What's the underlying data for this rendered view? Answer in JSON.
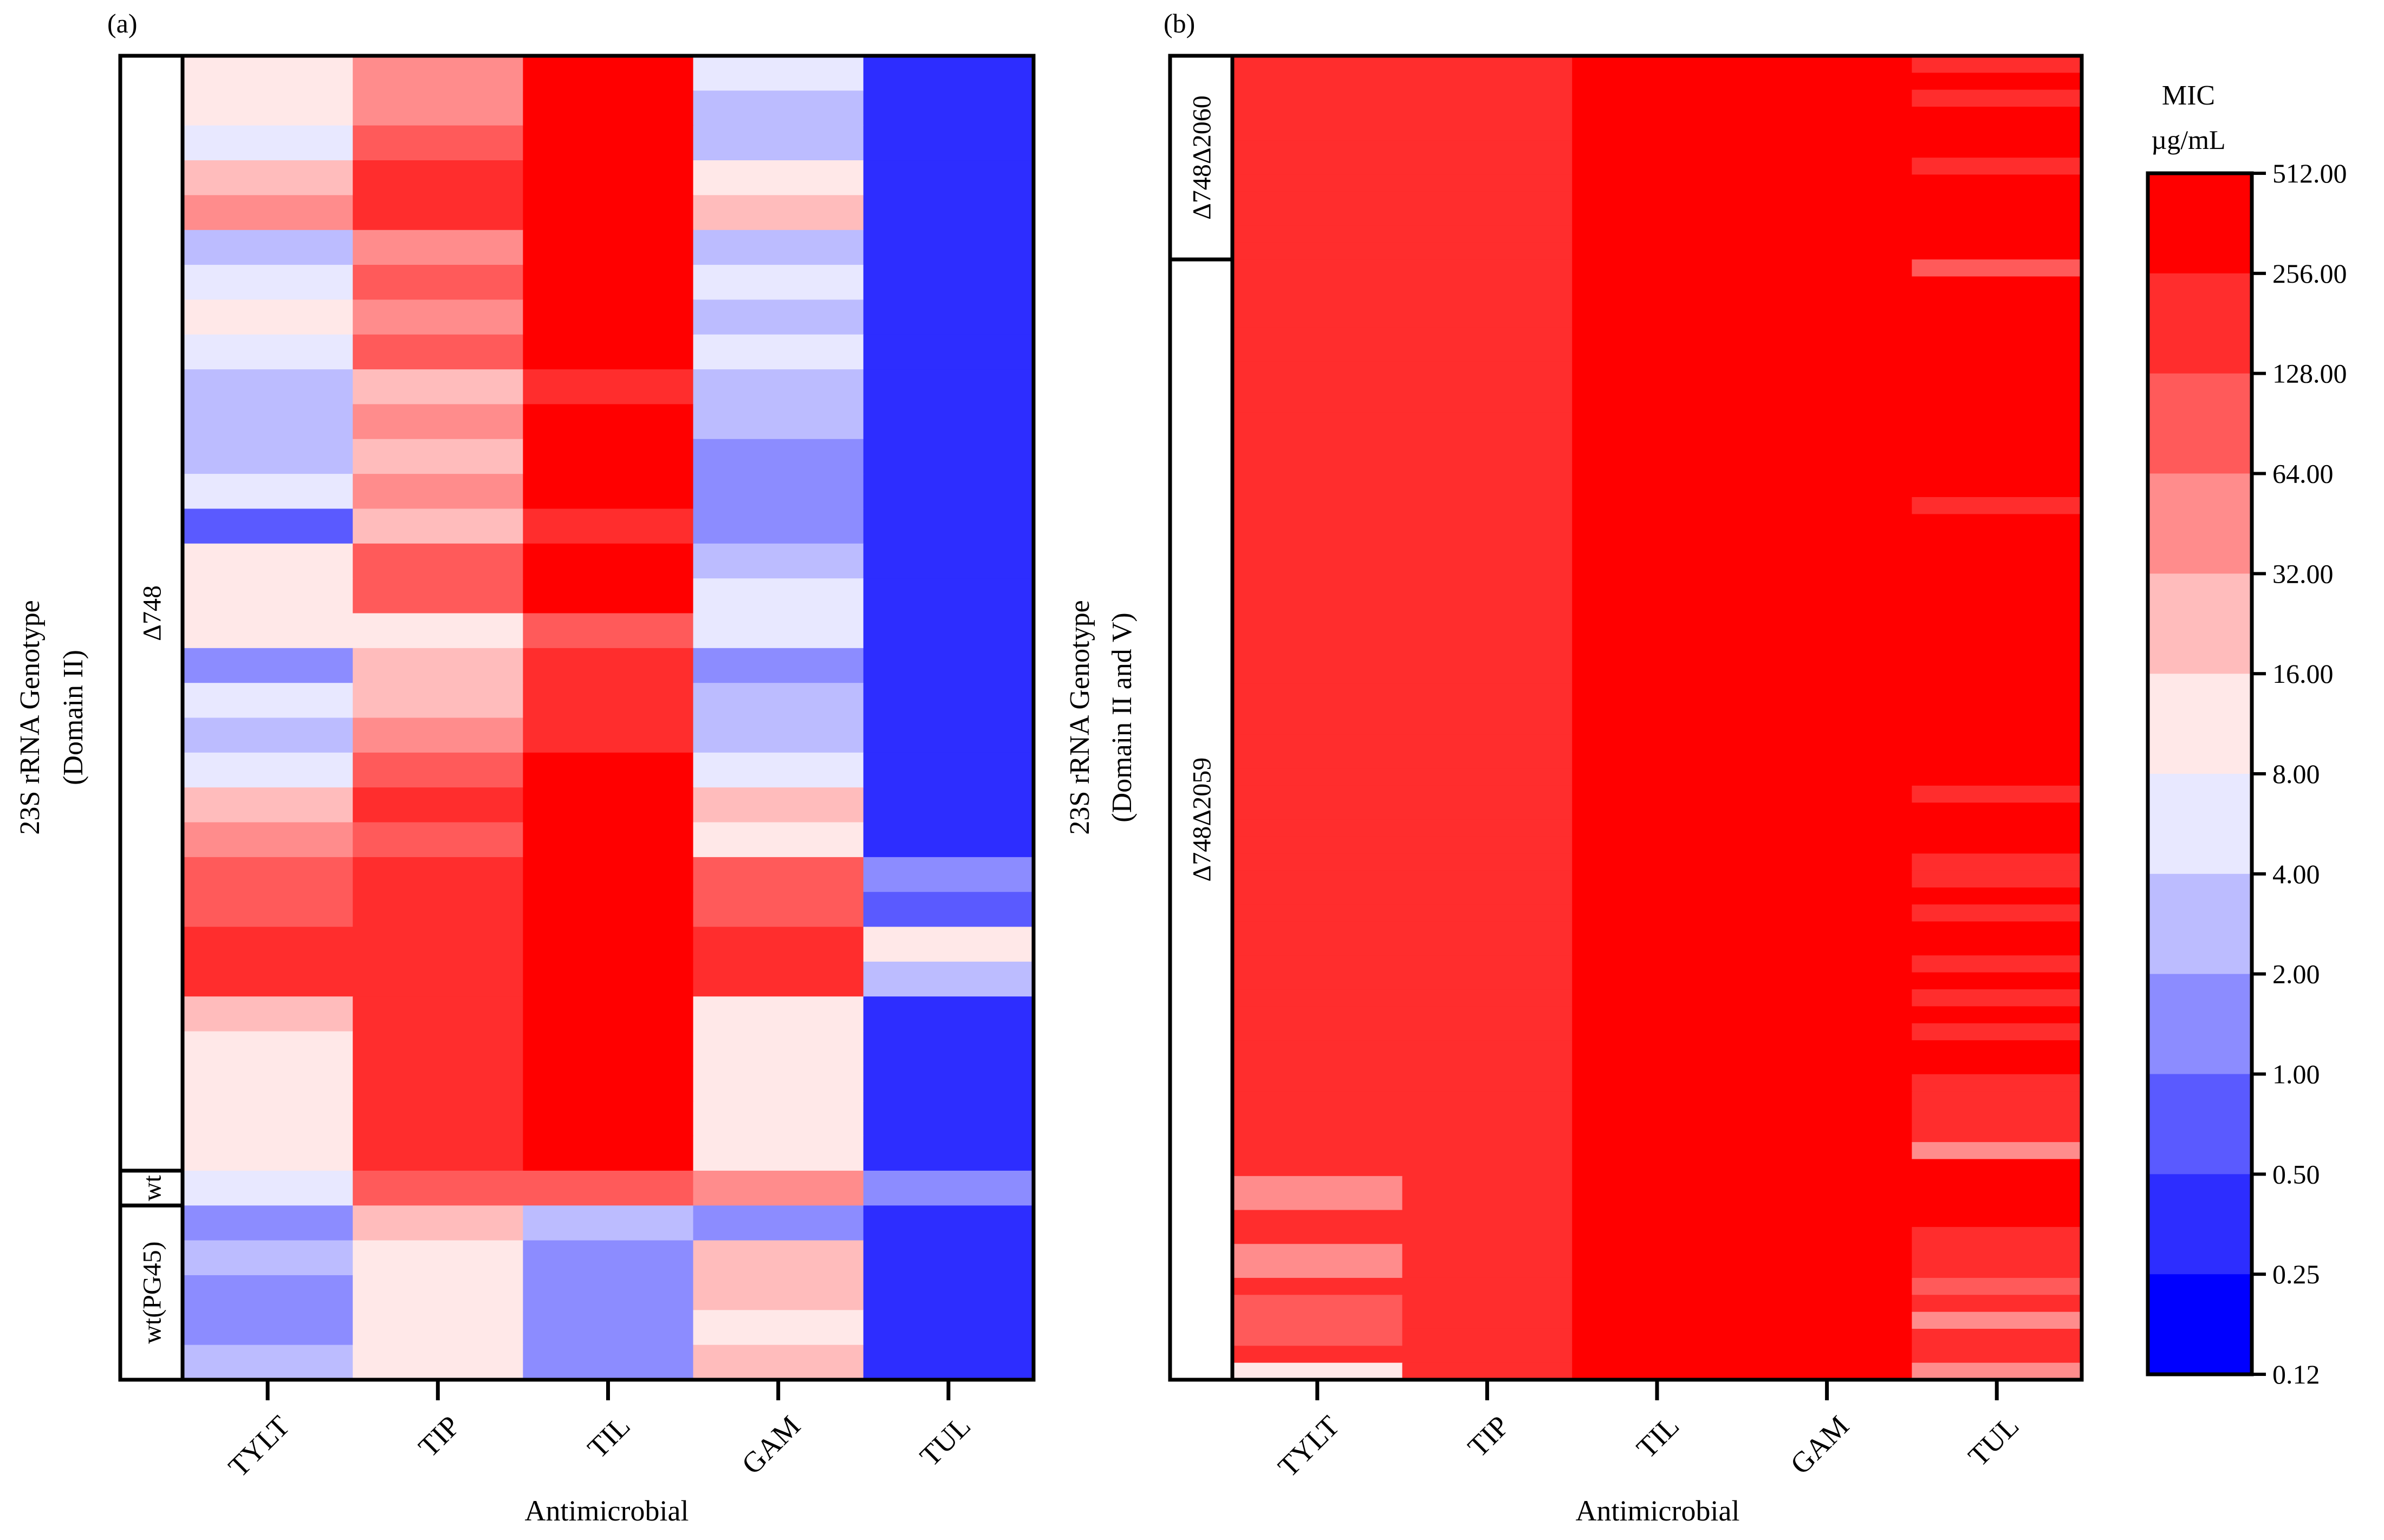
{
  "chart_data": {
    "type": "heatmap",
    "scale": {
      "title": "MIC",
      "unit": "µg/mL",
      "tick_labels": [
        "512.00",
        "256.00",
        "128.00",
        "64.00",
        "32.00",
        "16.00",
        "8.00",
        "4.00",
        "2.00",
        "1.00",
        "0.50",
        "0.25",
        "0.12"
      ],
      "band_colors": [
        "#ff0000",
        "#ff2d2d",
        "#ff5a5a",
        "#ff8c8c",
        "#ffbcbc",
        "#ffe8e8",
        "#e8e8ff",
        "#bcbcff",
        "#8c8cff",
        "#5a5aff",
        "#2d2dff",
        "#0000ff"
      ]
    },
    "panels": [
      {
        "label": "(a)",
        "xlabel": "Antimicrobial",
        "ylabel_line1": "23S rRNA Genotype",
        "ylabel_line2": "(Domain II)",
        "columns": [
          "TYLT",
          "TIP",
          "TIL",
          "GAM",
          "TUL"
        ],
        "groups": [
          {
            "name": "Δ748",
            "rows": 32
          },
          {
            "name": "wt",
            "rows": 1
          },
          {
            "name": "wt(PG45)",
            "rows": 5
          }
        ],
        "note": "values are µg/mL; rows top to bottom; columns TYLT, TIP, TIL, GAM, TUL",
        "rows": [
          [
            12,
            48,
            512,
            6,
            0.5
          ],
          [
            12,
            48,
            512,
            3,
            0.5
          ],
          [
            6,
            96,
            512,
            3,
            0.5
          ],
          [
            24,
            192,
            512,
            12,
            0.5
          ],
          [
            48,
            192,
            512,
            24,
            0.5
          ],
          [
            3,
            48,
            512,
            3,
            0.5
          ],
          [
            6,
            96,
            512,
            6,
            0.5
          ],
          [
            12,
            48,
            512,
            3,
            0.5
          ],
          [
            6,
            96,
            512,
            6,
            0.5
          ],
          [
            3,
            24,
            192,
            3,
            0.5
          ],
          [
            3,
            48,
            512,
            3,
            0.5
          ],
          [
            3,
            24,
            512,
            1.5,
            0.5
          ],
          [
            6,
            48,
            512,
            1.5,
            0.5
          ],
          [
            1,
            24,
            192,
            1.5,
            0.5
          ],
          [
            12,
            96,
            512,
            3,
            0.5
          ],
          [
            12,
            96,
            512,
            6,
            0.5
          ],
          [
            12,
            12,
            96,
            6,
            0.5
          ],
          [
            1.5,
            24,
            192,
            1.5,
            0.5
          ],
          [
            6,
            24,
            192,
            3,
            0.5
          ],
          [
            3,
            48,
            192,
            3,
            0.5
          ],
          [
            6,
            96,
            512,
            6,
            0.5
          ],
          [
            24,
            192,
            512,
            24,
            0.5
          ],
          [
            48,
            96,
            512,
            12,
            0.5
          ],
          [
            96,
            192,
            512,
            96,
            1.5
          ],
          [
            96,
            192,
            512,
            96,
            0.75
          ],
          [
            192,
            192,
            512,
            192,
            12
          ],
          [
            192,
            192,
            512,
            192,
            3
          ],
          [
            24,
            192,
            512,
            12,
            0.5
          ],
          [
            12,
            192,
            512,
            12,
            0.5
          ],
          [
            12,
            192,
            512,
            12,
            0.5
          ],
          [
            12,
            192,
            512,
            12,
            0.5
          ],
          [
            12,
            192,
            512,
            12,
            0.5
          ],
          [
            6,
            96,
            96,
            48,
            1.5
          ],
          [
            1.5,
            24,
            3,
            1.5,
            0.5
          ],
          [
            3,
            12,
            1.5,
            24,
            0.5
          ],
          [
            1.5,
            12,
            1.5,
            24,
            0.5
          ],
          [
            1.5,
            12,
            1.5,
            12,
            0.5
          ],
          [
            3,
            12,
            1.5,
            24,
            0.5
          ]
        ]
      },
      {
        "label": "(b)",
        "xlabel": "Antimicrobial",
        "ylabel_line1": "23S rRNA Genotype",
        "ylabel_line2": "(Domain II and V)",
        "columns": [
          "TYLT",
          "TIP",
          "TIL",
          "GAM",
          "TUL"
        ],
        "groups": [
          {
            "name": "Δ748Δ2060",
            "rows": 12
          },
          {
            "name": "Δ748Δ2059",
            "rows": 66
          }
        ],
        "base_values": [
          192,
          192,
          512,
          512,
          512
        ],
        "note": "all cells equal base_values except the listed deviations (column, first row, last row inclusive, value µg/mL)",
        "deviations": [
          {
            "col": 4,
            "from": 0,
            "to": 0,
            "value": 192
          },
          {
            "col": 4,
            "from": 2,
            "to": 2,
            "value": 192
          },
          {
            "col": 4,
            "from": 6,
            "to": 6,
            "value": 192
          },
          {
            "col": 4,
            "from": 12,
            "to": 12,
            "value": 96
          },
          {
            "col": 4,
            "from": 26,
            "to": 26,
            "value": 192
          },
          {
            "col": 4,
            "from": 43,
            "to": 43,
            "value": 192
          },
          {
            "col": 4,
            "from": 47,
            "to": 48,
            "value": 192
          },
          {
            "col": 4,
            "from": 50,
            "to": 50,
            "value": 192
          },
          {
            "col": 4,
            "from": 53,
            "to": 53,
            "value": 192
          },
          {
            "col": 4,
            "from": 55,
            "to": 55,
            "value": 192
          },
          {
            "col": 4,
            "from": 57,
            "to": 57,
            "value": 192
          },
          {
            "col": 4,
            "from": 60,
            "to": 63,
            "value": 192
          },
          {
            "col": 4,
            "from": 64,
            "to": 64,
            "value": 48
          },
          {
            "col": 4,
            "from": 69,
            "to": 71,
            "value": 192
          },
          {
            "col": 4,
            "from": 72,
            "to": 72,
            "value": 96
          },
          {
            "col": 4,
            "from": 73,
            "to": 73,
            "value": 192
          },
          {
            "col": 4,
            "from": 74,
            "to": 74,
            "value": 48
          },
          {
            "col": 4,
            "from": 75,
            "to": 76,
            "value": 192
          },
          {
            "col": 4,
            "from": 77,
            "to": 77,
            "value": 48
          },
          {
            "col": 0,
            "from": 66,
            "to": 67,
            "value": 48
          },
          {
            "col": 0,
            "from": 70,
            "to": 71,
            "value": 48
          },
          {
            "col": 0,
            "from": 73,
            "to": 75,
            "value": 96
          },
          {
            "col": 0,
            "from": 77,
            "to": 77,
            "value": 12
          }
        ]
      }
    ]
  }
}
